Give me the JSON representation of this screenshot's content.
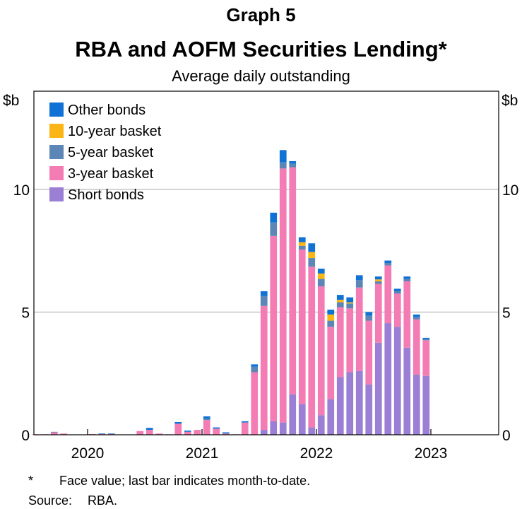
{
  "header": {
    "graph_label": "Graph 5",
    "title": "RBA and AOFM Securities Lending*",
    "subtitle": "Average daily outstanding"
  },
  "footnotes": {
    "star_marker": "*",
    "star_text": "Face value; last bar indicates month-to-date.",
    "source_label": "Source:",
    "source_text": "RBA."
  },
  "chart_data": {
    "type": "bar",
    "stacked": true,
    "y_unit_left": "$b",
    "y_unit_right": "$b",
    "ylim": [
      0,
      14
    ],
    "y_ticks": [
      0,
      5,
      10
    ],
    "y_tick_labels": [
      "0",
      "5",
      "10"
    ],
    "gridlines": true,
    "legend_position": "top-left",
    "x_year_labels": [
      "2020",
      "2021",
      "2022",
      "2023"
    ],
    "x_year_start_months": [
      "2020-01",
      "2021-01",
      "2022-01",
      "2023-01"
    ],
    "categories": [
      "2019-07",
      "2019-08",
      "2019-09",
      "2019-10",
      "2019-11",
      "2019-12",
      "2020-01",
      "2020-02",
      "2020-03",
      "2020-04",
      "2020-05",
      "2020-06",
      "2020-07",
      "2020-08",
      "2020-09",
      "2020-10",
      "2020-11",
      "2020-12",
      "2021-01",
      "2021-02",
      "2021-03",
      "2021-04",
      "2021-05",
      "2021-06",
      "2021-07",
      "2021-08",
      "2021-09",
      "2021-10",
      "2021-11",
      "2021-12",
      "2022-01",
      "2022-02",
      "2022-03",
      "2022-04",
      "2022-05",
      "2022-06",
      "2022-07",
      "2022-08",
      "2022-09",
      "2022-10",
      "2022-11",
      "2022-12"
    ],
    "series": [
      {
        "name": "Short bonds",
        "color": "#9b7fd4",
        "values": [
          0,
          0,
          0,
          0,
          0,
          0,
          0,
          0,
          0,
          0,
          0,
          0,
          0,
          0,
          0,
          0,
          0,
          0,
          0,
          0,
          0,
          0,
          0,
          0,
          0.2,
          0.55,
          0.5,
          1.65,
          1.25,
          0.3,
          0.8,
          1.45,
          2.35,
          2.55,
          2.6,
          2.05,
          3.75,
          4.55,
          4.4,
          3.55,
          2.45,
          2.4
        ]
      },
      {
        "name": "3-year basket",
        "color": "#f47cb5",
        "values": [
          0.02,
          0.02,
          0.1,
          0.05,
          0,
          0,
          0.03,
          0.03,
          0.03,
          0,
          0,
          0.15,
          0.2,
          0.05,
          0.02,
          0.45,
          0.12,
          0.2,
          0.6,
          0.25,
          0.05,
          0.02,
          0.5,
          2.55,
          5.05,
          7.55,
          10.35,
          9.25,
          6.3,
          6.55,
          5.25,
          2.95,
          2.85,
          2.6,
          3.4,
          2.6,
          2.4,
          2.35,
          1.35,
          2.7,
          2.25,
          1.45
        ]
      },
      {
        "name": "5-year basket",
        "color": "#5b86b5",
        "values": [
          0,
          0,
          0.02,
          0,
          0,
          0,
          0,
          0,
          0,
          0,
          0,
          0,
          0,
          0,
          0,
          0,
          0,
          0,
          0.05,
          0,
          0,
          0,
          0,
          0.22,
          0.4,
          0.55,
          0.25,
          0.15,
          0.15,
          0.35,
          0.3,
          0.25,
          0.2,
          0.2,
          0.3,
          0.2,
          0.1,
          0.1,
          0.1,
          0.1,
          0.1,
          0.05
        ]
      },
      {
        "name": "10-year basket",
        "color": "#fbb514",
        "values": [
          0,
          0,
          0,
          0,
          0,
          0,
          0,
          0,
          0,
          0,
          0,
          0,
          0,
          0,
          0,
          0,
          0,
          0,
          0,
          0,
          0,
          0,
          0,
          0,
          0,
          0,
          0,
          0,
          0.15,
          0.25,
          0.22,
          0.25,
          0.1,
          0.05,
          0,
          0,
          0.08,
          0,
          0,
          0,
          0,
          0
        ]
      },
      {
        "name": "Other bonds",
        "color": "#1172d6",
        "values": [
          0,
          0,
          0,
          0,
          0,
          0,
          0,
          0.02,
          0.02,
          0,
          0,
          0,
          0.08,
          0,
          0,
          0.07,
          0.05,
          0,
          0.1,
          0.05,
          0.05,
          0,
          0.05,
          0.1,
          0.2,
          0.4,
          0.5,
          0.1,
          0.2,
          0.35,
          0.2,
          0.2,
          0.2,
          0.2,
          0.2,
          0.15,
          0.12,
          0.1,
          0.1,
          0.1,
          0.1,
          0.05
        ]
      }
    ]
  }
}
